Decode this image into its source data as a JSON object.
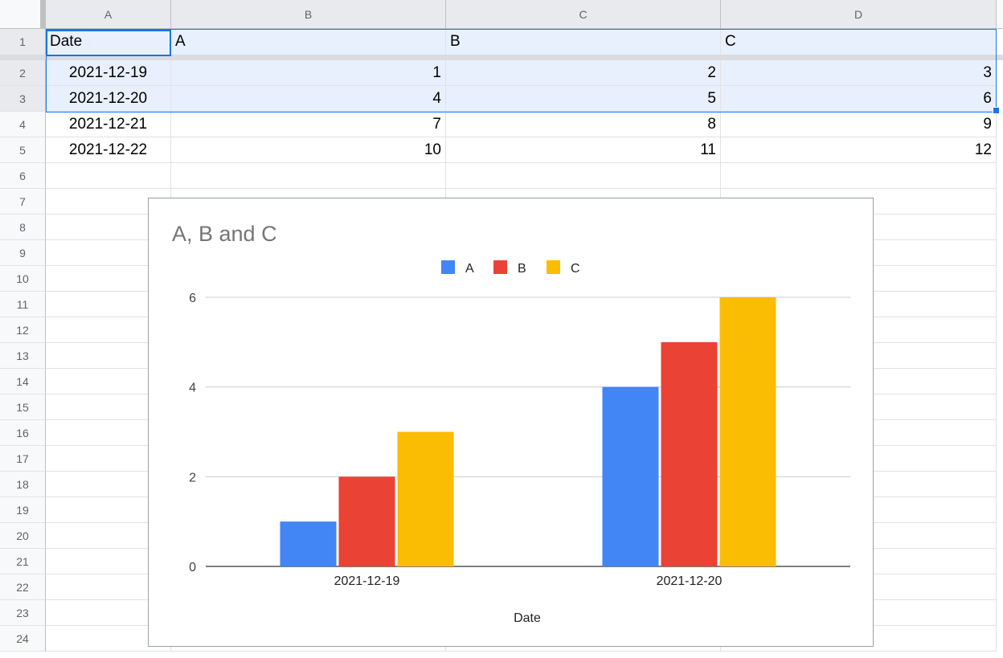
{
  "columns": [
    "A",
    "B",
    "C",
    "D"
  ],
  "rows": [
    "1",
    "2",
    "3",
    "4",
    "5",
    "6",
    "7",
    "8",
    "9",
    "10",
    "11",
    "12",
    "13",
    "14",
    "15",
    "16",
    "17",
    "18",
    "19",
    "20",
    "21",
    "22",
    "23",
    "24"
  ],
  "cells": [
    [
      "Date",
      "A",
      "B",
      "C"
    ],
    [
      "2021-12-19",
      "1",
      "2",
      "3"
    ],
    [
      "2021-12-20",
      "4",
      "5",
      "6"
    ],
    [
      "2021-12-21",
      "7",
      "8",
      "9"
    ],
    [
      "2021-12-22",
      "10",
      "11",
      "12"
    ]
  ],
  "colors": {
    "A": "#4285f4",
    "B": "#ea4335",
    "C": "#fbbc04"
  },
  "chart_data": {
    "type": "bar",
    "title": "A, B and C",
    "xlabel": "Date",
    "ylabel": "",
    "categories": [
      "2021-12-19",
      "2021-12-20"
    ],
    "series": [
      {
        "name": "A",
        "values": [
          1,
          4
        ],
        "color": "#4285f4"
      },
      {
        "name": "B",
        "values": [
          2,
          5
        ],
        "color": "#ea4335"
      },
      {
        "name": "C",
        "values": [
          3,
          6
        ],
        "color": "#fbbc04"
      }
    ],
    "ylim": [
      0,
      6
    ],
    "yticks": [
      "0",
      "2",
      "4",
      "6"
    ],
    "ytick_values": [
      0,
      2,
      4,
      6
    ],
    "legend_position": "top-center",
    "grid": true
  }
}
